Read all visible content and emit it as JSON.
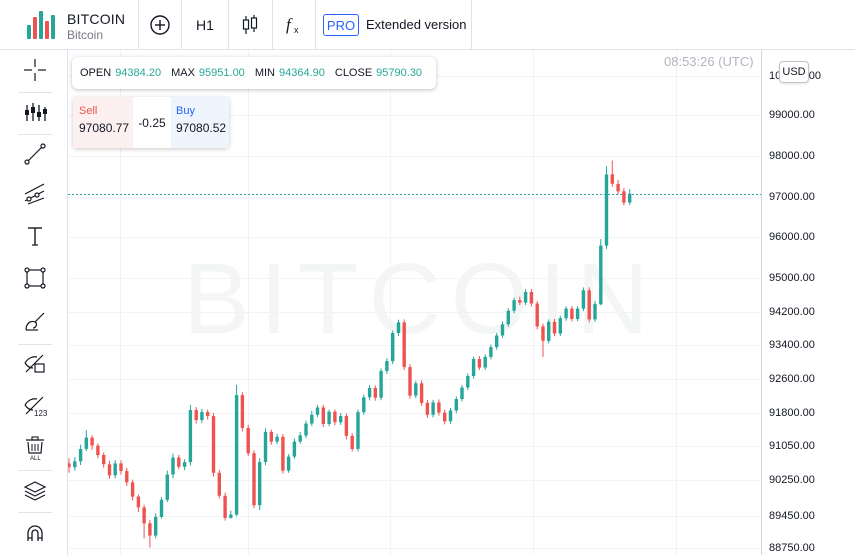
{
  "header": {
    "symbol": "BITCOIN",
    "description": "Bitcoin",
    "timeframe": "H1",
    "pro_badge": "PRO",
    "extended_label": "Extended version",
    "icons": [
      "add-symbol-icon",
      "candles-icon",
      "indicators-icon"
    ]
  },
  "toolbar": {
    "tools": [
      "crosshair-icon",
      "indicator-settings-icon",
      "trend-line-icon",
      "pitchfork-icon",
      "text-icon",
      "rectangle-icon",
      "brush-icon",
      "hide-drawings-icon",
      "hide-price-icon",
      "remove-all-icon",
      "layers-icon",
      "magnet-icon"
    ]
  },
  "ohlc": {
    "open_label": "OPEN",
    "open": "94384.20",
    "high_label": "MAX",
    "high": "95951.00",
    "low_label": "MIN",
    "low": "94364.90",
    "close_label": "CLOSE",
    "close": "95790.30"
  },
  "trade": {
    "sell_label": "Sell",
    "sell_price": "97080.77",
    "spread": "-0.25",
    "buy_label": "Buy",
    "buy_price": "97080.52"
  },
  "clock": "08:53:26 (UTC)",
  "currency": "USD",
  "watermark": "BITCOIN",
  "colors": {
    "up": "#26a69a",
    "down": "#ef5350",
    "accent": "#2962ff",
    "grid": "#f0f3fa"
  },
  "price_axis": {
    "ticks": [
      "100000.00",
      "99000.00",
      "98000.00",
      "97000.00",
      "96000.00",
      "95000.00",
      "94200.00",
      "93400.00",
      "92600.00",
      "91800.00",
      "91050.00",
      "90250.00",
      "89450.00",
      "88750.00"
    ],
    "current_price": 97080.5
  },
  "candles": [
    [
      90640,
      90550,
      90760,
      90420
    ],
    [
      90550,
      90690,
      90790,
      90470
    ],
    [
      90690,
      90980,
      91080,
      90600
    ],
    [
      90980,
      91240,
      91410,
      90930
    ],
    [
      91240,
      91060,
      91290,
      90960
    ],
    [
      91060,
      90840,
      91110,
      90760
    ],
    [
      90840,
      90620,
      90900,
      90540
    ],
    [
      90620,
      90360,
      90700,
      90280
    ],
    [
      90360,
      90640,
      90720,
      90290
    ],
    [
      90640,
      90460,
      90710,
      90380
    ],
    [
      90460,
      90200,
      90540,
      90120
    ],
    [
      90200,
      89880,
      90260,
      89800
    ],
    [
      89880,
      89640,
      89930,
      89540
    ],
    [
      89640,
      89290,
      89700,
      88960
    ],
    [
      89290,
      89020,
      89360,
      88760
    ],
    [
      89020,
      89430,
      89510,
      88960
    ],
    [
      89430,
      89810,
      89870,
      89390
    ],
    [
      89810,
      90380,
      90470,
      89760
    ],
    [
      90380,
      90780,
      90870,
      90290
    ],
    [
      90780,
      90560,
      90840,
      90500
    ],
    [
      90560,
      90670,
      90740,
      90480
    ],
    [
      90670,
      91870,
      91990,
      90590
    ],
    [
      91870,
      91640,
      91940,
      91560
    ],
    [
      91640,
      91820,
      91900,
      91570
    ],
    [
      91820,
      91730,
      91880,
      91650
    ],
    [
      91730,
      90420,
      91800,
      90330
    ],
    [
      90420,
      89900,
      90490,
      89840
    ],
    [
      89900,
      89410,
      89970,
      89350
    ],
    [
      89410,
      89480,
      89570,
      89390
    ],
    [
      89480,
      92220,
      92460,
      89440
    ],
    [
      92220,
      91460,
      92290,
      91380
    ],
    [
      91460,
      90880,
      91530,
      90810
    ],
    [
      90880,
      89690,
      90950,
      89620
    ],
    [
      89690,
      90670,
      90760,
      89580
    ],
    [
      90670,
      91370,
      91450,
      90600
    ],
    [
      91370,
      91150,
      91420,
      91080
    ],
    [
      91150,
      91260,
      91330,
      91090
    ],
    [
      91260,
      90470,
      91320,
      90400
    ],
    [
      90470,
      90800,
      90860,
      90420
    ],
    [
      90800,
      91150,
      91220,
      90750
    ],
    [
      91150,
      91290,
      91370,
      91100
    ],
    [
      91290,
      91560,
      91620,
      91230
    ],
    [
      91560,
      91760,
      91850,
      91500
    ],
    [
      91760,
      91930,
      91990,
      91710
    ],
    [
      91930,
      91550,
      91990,
      91480
    ],
    [
      91550,
      91830,
      91880,
      91500
    ],
    [
      91830,
      91590,
      91890,
      91520
    ],
    [
      91590,
      91730,
      91800,
      91530
    ],
    [
      91730,
      91280,
      91790,
      91200
    ],
    [
      91280,
      90980,
      91340,
      90920
    ],
    [
      90980,
      91820,
      91880,
      90920
    ],
    [
      91820,
      92170,
      92230,
      91760
    ],
    [
      92170,
      92390,
      92460,
      92100
    ],
    [
      92390,
      92160,
      92450,
      92090
    ],
    [
      92160,
      92790,
      92850,
      92100
    ],
    [
      92790,
      93020,
      93090,
      92720
    ],
    [
      93020,
      93690,
      93750,
      92950
    ],
    [
      93690,
      93950,
      94010,
      93620
    ],
    [
      93950,
      92880,
      94020,
      92810
    ],
    [
      92880,
      92210,
      92950,
      92140
    ],
    [
      92210,
      92500,
      92560,
      92150
    ],
    [
      92500,
      92040,
      92570,
      91970
    ],
    [
      92040,
      91760,
      92110,
      91690
    ],
    [
      91760,
      92050,
      92110,
      91700
    ],
    [
      92050,
      91810,
      92120,
      91740
    ],
    [
      91810,
      91610,
      91880,
      91540
    ],
    [
      91610,
      91860,
      91920,
      91560
    ],
    [
      91860,
      92130,
      92190,
      91800
    ],
    [
      92130,
      92400,
      92460,
      92070
    ],
    [
      92400,
      92670,
      92730,
      92340
    ],
    [
      92670,
      93070,
      93130,
      92610
    ],
    [
      93070,
      92870,
      93140,
      92810
    ],
    [
      92870,
      93120,
      93180,
      92810
    ],
    [
      93120,
      93350,
      93410,
      93060
    ],
    [
      93350,
      93630,
      93690,
      93290
    ],
    [
      93630,
      93900,
      93970,
      93570
    ],
    [
      93900,
      94230,
      94290,
      93840
    ],
    [
      94230,
      94480,
      94540,
      94170
    ],
    [
      94480,
      94420,
      94560,
      94360
    ],
    [
      94420,
      94670,
      94740,
      94360
    ],
    [
      94670,
      94400,
      94740,
      94330
    ],
    [
      94400,
      93850,
      94460,
      93780
    ],
    [
      93850,
      93500,
      93920,
      93120
    ],
    [
      93500,
      93960,
      94020,
      93440
    ],
    [
      93960,
      93680,
      94030,
      93610
    ],
    [
      93680,
      94050,
      94110,
      93620
    ],
    [
      94050,
      94280,
      94340,
      93990
    ],
    [
      94280,
      94030,
      94340,
      93970
    ],
    [
      94030,
      94280,
      94340,
      93980
    ],
    [
      94280,
      94710,
      94780,
      94220
    ],
    [
      94710,
      94020,
      94780,
      93950
    ],
    [
      94020,
      94390,
      94460,
      93960
    ],
    [
      94380,
      95790,
      95950,
      94360
    ],
    [
      95790,
      97550,
      97750,
      95710
    ],
    [
      97550,
      97320,
      97890,
      97250
    ],
    [
      97320,
      97140,
      97420,
      97060
    ],
    [
      97140,
      96860,
      97220,
      96790
    ],
    [
      96860,
      97080,
      97190,
      96800
    ]
  ]
}
